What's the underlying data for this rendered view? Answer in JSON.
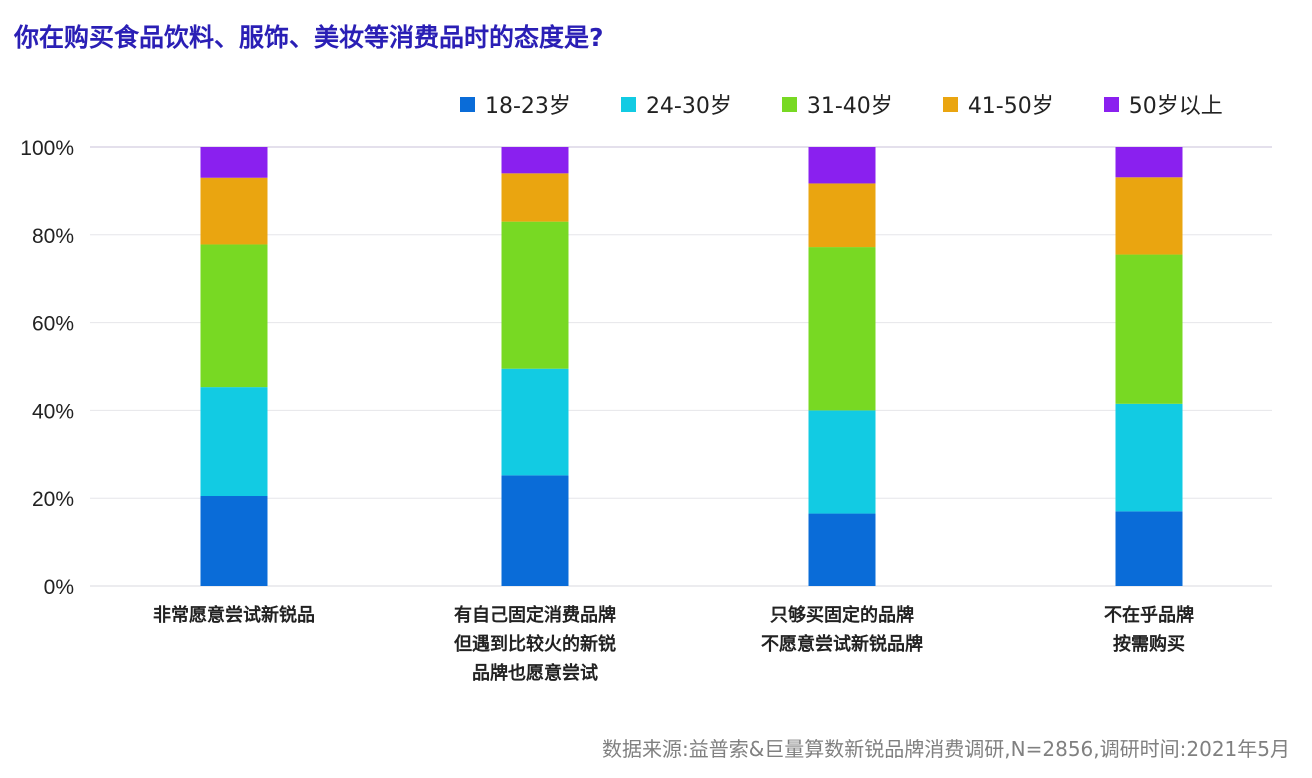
{
  "chart_data": {
    "type": "bar",
    "stacked": true,
    "title": "你在购买食品饮料、服饰、美妆等消费品时的态度是?",
    "categories": [
      [
        "非常愿意尝试新锐品"
      ],
      [
        "有自己固定消费品牌",
        "但遇到比较火的新锐",
        "品牌也愿意尝试"
      ],
      [
        "只够买固定的品牌",
        "不愿意尝试新锐品牌"
      ],
      [
        "不在乎品牌",
        "按需购买"
      ]
    ],
    "series": [
      {
        "name": "18-23岁",
        "color": "#0a6cd8",
        "values": [
          20.5,
          25.2,
          16.5,
          17.0
        ]
      },
      {
        "name": "24-30岁",
        "color": "#12cbe3",
        "values": [
          24.8,
          24.3,
          23.5,
          24.5
        ]
      },
      {
        "name": "31-40岁",
        "color": "#78d923",
        "values": [
          32.5,
          33.5,
          37.2,
          34.0
        ]
      },
      {
        "name": "41-50岁",
        "color": "#eaa510",
        "values": [
          15.2,
          11.0,
          14.5,
          17.6
        ]
      },
      {
        "name": "50岁以上",
        "color": "#8a20ef",
        "values": [
          7.0,
          6.0,
          8.3,
          6.9
        ]
      }
    ],
    "y_ticks": [
      "0%",
      "20%",
      "40%",
      "60%",
      "80%",
      "100%"
    ],
    "ylim": [
      0,
      100
    ],
    "grid": true,
    "legend_position": "top-right"
  },
  "source": "数据来源:益普索&巨量算数新锐品牌消费调研,N=2856,调研时间:2021年5月"
}
